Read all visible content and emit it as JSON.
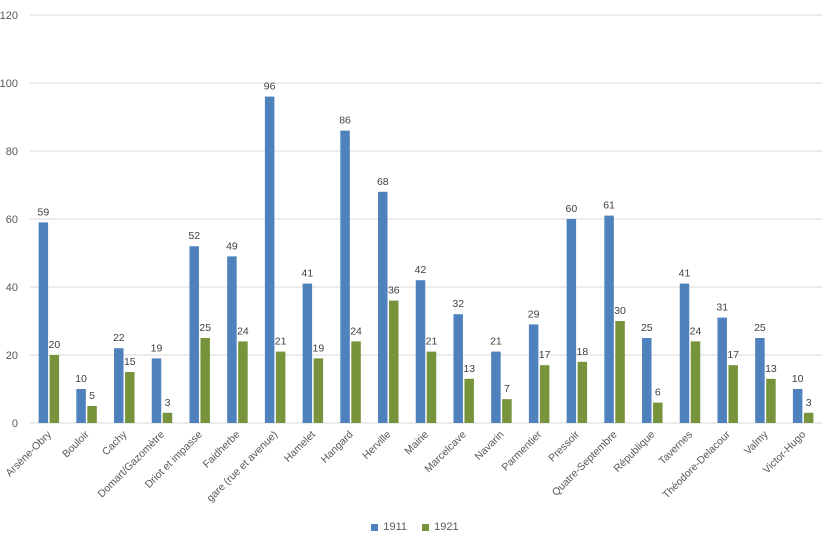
{
  "chart_data": {
    "type": "bar",
    "title": "",
    "xlabel": "",
    "ylabel": "",
    "ylim": [
      0,
      120
    ],
    "yticks": [
      0,
      20,
      40,
      60,
      80,
      100,
      120
    ],
    "grid": true,
    "legend_position": "bottom",
    "categories": [
      "Arsène-Obry",
      "Bouloir",
      "Cachy",
      "Domart/Gazomètre",
      "Driot et impasse",
      "Faidherbe",
      "gare (rue et avenue)",
      "Hamelet",
      "Hangard",
      "Herville",
      "Mairie",
      "Marcelcave",
      "Navarin",
      "Parmentier",
      "Pressoir",
      "Quatre-Septembre",
      "République",
      "Tavernes",
      "Théodore-Delacour",
      "Valmy",
      "Victor-Hugo"
    ],
    "series": [
      {
        "name": "1911",
        "color": "#4f81bd",
        "values": [
          59,
          10,
          22,
          19,
          52,
          49,
          96,
          41,
          86,
          68,
          42,
          32,
          21,
          29,
          60,
          61,
          25,
          41,
          31,
          25,
          10
        ]
      },
      {
        "name": "1921",
        "color": "#77933c",
        "values": [
          20,
          5,
          15,
          3,
          25,
          24,
          21,
          19,
          24,
          36,
          21,
          13,
          7,
          17,
          18,
          30,
          6,
          24,
          17,
          13,
          3
        ]
      }
    ]
  }
}
